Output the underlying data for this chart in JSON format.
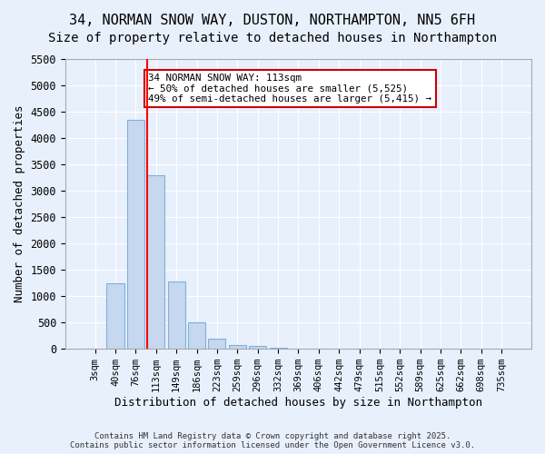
{
  "title": "34, NORMAN SNOW WAY, DUSTON, NORTHAMPTON, NN5 6FH",
  "subtitle": "Size of property relative to detached houses in Northampton",
  "xlabel": "Distribution of detached houses by size in Northampton",
  "ylabel": "Number of detached properties",
  "bin_labels": [
    "3sqm",
    "40sqm",
    "76sqm",
    "113sqm",
    "149sqm",
    "186sqm",
    "223sqm",
    "259sqm",
    "296sqm",
    "332sqm",
    "369sqm",
    "406sqm",
    "442sqm",
    "479sqm",
    "515sqm",
    "552sqm",
    "589sqm",
    "625sqm",
    "662sqm",
    "698sqm",
    "735sqm"
  ],
  "bar_values": [
    0,
    1250,
    4350,
    3300,
    1280,
    500,
    200,
    80,
    60,
    20,
    10,
    5,
    5,
    0,
    0,
    0,
    0,
    0,
    0,
    0,
    0
  ],
  "bar_color": "#c5d8f0",
  "bar_edge_color": "#7fb0d8",
  "background_color": "#e8f0fc",
  "grid_color": "#ffffff",
  "red_line_index": 3,
  "annotation_text": "34 NORMAN SNOW WAY: 113sqm\n← 50% of detached houses are smaller (5,525)\n49% of semi-detached houses are larger (5,415) →",
  "annotation_box_color": "#ffffff",
  "annotation_box_edge": "#cc0000",
  "ylim": [
    0,
    5500
  ],
  "yticks": [
    0,
    500,
    1000,
    1500,
    2000,
    2500,
    3000,
    3500,
    4000,
    4500,
    5000,
    5500
  ],
  "footer_line1": "Contains HM Land Registry data © Crown copyright and database right 2025.",
  "footer_line2": "Contains public sector information licensed under the Open Government Licence v3.0.",
  "title_fontsize": 11,
  "subtitle_fontsize": 10
}
